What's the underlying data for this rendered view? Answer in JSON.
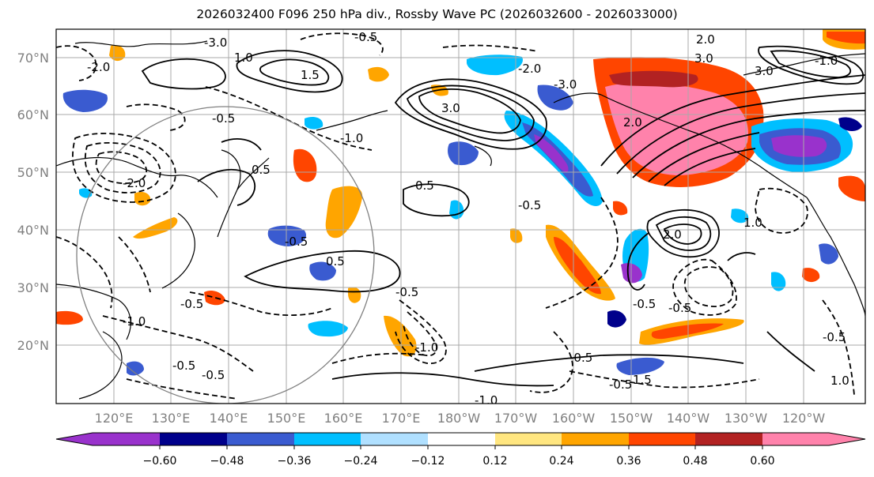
{
  "title": "2026032400 F096 250 hPa div., Rossby Wave PC (2026032600 - 2026033000)",
  "lat_labels": [
    "70°N",
    "60°N",
    "50°N",
    "40°N",
    "30°N",
    "20°N"
  ],
  "lon_labels": [
    "120°E",
    "130°E",
    "140°E",
    "150°E",
    "160°E",
    "170°E",
    "180°W",
    "170°W",
    "160°W",
    "150°W",
    "140°W",
    "130°W",
    "120°W"
  ],
  "contour_labels": [
    "-3.0",
    "-2.0",
    "-1.0",
    "-0.5",
    "0.5",
    "1.0",
    "1.5",
    "2.0",
    "3.0"
  ],
  "colorbar": {
    "colors": [
      "#9932cc",
      "#00008b",
      "#3a5bd0",
      "#00bfff",
      "#b0e0ff",
      "#ffffff",
      "#ffe680",
      "#ffa500",
      "#ff4500",
      "#b22222",
      "#ff82ab"
    ],
    "ticks": [
      "−0.60",
      "−0.48",
      "−0.36",
      "−0.24",
      "−0.12",
      "0.12",
      "0.24",
      "0.36",
      "0.48",
      "0.60"
    ]
  }
}
